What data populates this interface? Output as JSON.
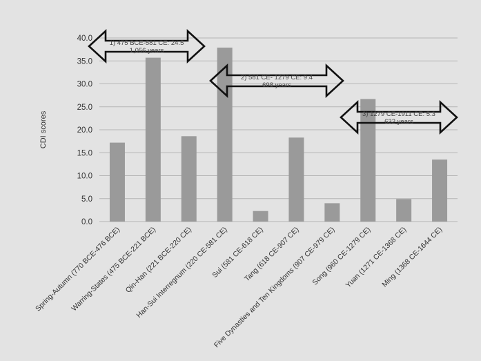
{
  "chart_data": {
    "type": "bar",
    "title": "",
    "xlabel": "",
    "ylabel": "CDI scores",
    "ylim": [
      0,
      40
    ],
    "yticks": [
      "0.0",
      "5.0",
      "10.0",
      "15.0",
      "20.0",
      "25.0",
      "30.0",
      "35.0",
      "40.0"
    ],
    "grid": true,
    "categories": [
      "Spring-Autumn (770 BCE-476 BCE)",
      "Warring-States (475 BCE-221 BCE)",
      "Qin-Han (221 BCE-220 CE)",
      "Han-Sui Interregnum (220 CE-581 CE)",
      "Sui (581 CE-618 CE)",
      "Tang (618 CE-907 CE)",
      "Five Dynasties and Ten Kingdoms (907 CE-979 CE)",
      "Song (960 CE-1279 CE)",
      "Yuan (1271 CE-1368 CE)",
      "Ming (1368 CE-1644 CE)"
    ],
    "values": [
      17.2,
      35.7,
      18.6,
      37.9,
      2.3,
      18.3,
      4.0,
      26.7,
      4.9,
      13.5
    ],
    "bar_color": "#9a9a9a",
    "annotations": [
      {
        "line1": "1) 475 BCE-581 CE: 24.5",
        "line2": "1,056 years",
        "from_category": 0,
        "to_category": 3
      },
      {
        "line1": "2) 581 CE- 1279 CE: 9.4",
        "line2": "698 years",
        "from_category": 3,
        "to_category": 7
      },
      {
        "line1": "3) 1279 CE-1911 CE: 5.3",
        "line2": "632 years",
        "from_category": 7,
        "to_category": 9
      }
    ]
  }
}
